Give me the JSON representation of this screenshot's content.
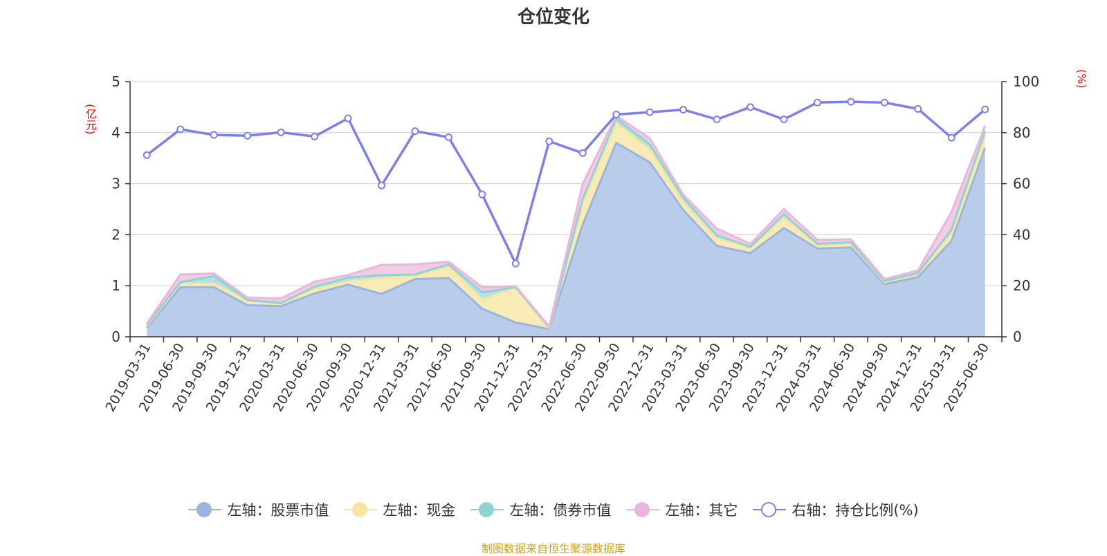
{
  "title": "仓位变化",
  "left_unit": "(亿元)",
  "right_unit": "(%)",
  "footer": "制图数据来自恒生聚源数据库",
  "colors": {
    "stock": "#9ab5e0",
    "cash": "#f8e5a3",
    "bond": "#8fd3d3",
    "other": "#eab6dc",
    "ratio": "#7b7ff0"
  },
  "legend": [
    {
      "label": "左轴：股票市值",
      "color": "#9ab5e0",
      "style": "filled"
    },
    {
      "label": "左轴：现金",
      "color": "#f8e5a3",
      "style": "filled"
    },
    {
      "label": "左轴：债券市值",
      "color": "#8fd3d3",
      "style": "filled"
    },
    {
      "label": "左轴：其它",
      "color": "#eab6dc",
      "style": "filled"
    },
    {
      "label": "右轴：持仓比例(%)",
      "color": "#7b7ff0",
      "style": "hollow"
    }
  ],
  "chart_data": {
    "type": "area",
    "title": "仓位变化",
    "x": [
      "2019-03-31",
      "2019-06-30",
      "2019-09-30",
      "2019-12-31",
      "2020-03-31",
      "2020-06-30",
      "2020-09-30",
      "2020-12-31",
      "2021-03-31",
      "2021-06-30",
      "2021-09-30",
      "2021-12-31",
      "2022-03-31",
      "2022-06-30",
      "2022-09-30",
      "2022-12-31",
      "2023-03-31",
      "2023-06-30",
      "2023-09-30",
      "2023-12-31",
      "2024-03-31",
      "2024-06-30",
      "2024-09-30",
      "2024-12-31",
      "2025-03-31",
      "2025-06-30"
    ],
    "y_left_ticks": [
      0,
      1,
      2,
      3,
      4,
      5
    ],
    "y_right_ticks": [
      0,
      20,
      40,
      60,
      80,
      100
    ],
    "y_left_range": [
      0,
      5
    ],
    "y_right_range": [
      0,
      100
    ],
    "grid": true,
    "legend_position": "bottom",
    "stacked": true,
    "series": [
      {
        "name": "左轴：股票市值",
        "axis": "left",
        "values": [
          0.17,
          0.97,
          0.97,
          0.62,
          0.6,
          0.85,
          1.02,
          0.84,
          1.13,
          1.15,
          0.55,
          0.28,
          0.15,
          2.2,
          3.8,
          3.42,
          2.48,
          1.78,
          1.64,
          2.13,
          1.73,
          1.75,
          1.03,
          1.17,
          1.88,
          3.7
        ]
      },
      {
        "name": "左轴：现金",
        "axis": "left",
        "values": [
          0.04,
          0.07,
          0.07,
          0.09,
          0.05,
          0.08,
          0.06,
          0.31,
          0.06,
          0.22,
          0.18,
          0.68,
          0.02,
          0.4,
          0.38,
          0.25,
          0.15,
          0.14,
          0.1,
          0.2,
          0.06,
          0.07,
          0.04,
          0.06,
          0.14,
          0.24
        ]
      },
      {
        "name": "左轴：债券市值",
        "axis": "left",
        "values": [
          0.02,
          0.03,
          0.15,
          0.01,
          0.01,
          0.05,
          0.08,
          0.06,
          0.03,
          0.05,
          0.14,
          0.01,
          0.01,
          0.1,
          0.1,
          0.1,
          0.1,
          0.07,
          0.02,
          0.07,
          0.03,
          0.03,
          0.02,
          0.02,
          0.08,
          0.09
        ]
      },
      {
        "name": "左轴：其它",
        "axis": "left",
        "values": [
          0.03,
          0.15,
          0.05,
          0.05,
          0.09,
          0.1,
          0.05,
          0.2,
          0.2,
          0.05,
          0.1,
          0.02,
          0.02,
          0.3,
          0.05,
          0.12,
          0.05,
          0.13,
          0.06,
          0.1,
          0.08,
          0.06,
          0.04,
          0.05,
          0.35,
          0.1
        ]
      },
      {
        "name": "右轴：持仓比例(%)",
        "axis": "right",
        "values": [
          71.2,
          81.3,
          79.1,
          78.8,
          80.1,
          78.5,
          85.6,
          59.3,
          80.6,
          78.2,
          55.8,
          28.7,
          76.6,
          72.0,
          87.1,
          88.0,
          89.0,
          85.2,
          90.0,
          85.2,
          91.8,
          92.1,
          91.8,
          89.3,
          78.0,
          89.1
        ]
      }
    ]
  }
}
